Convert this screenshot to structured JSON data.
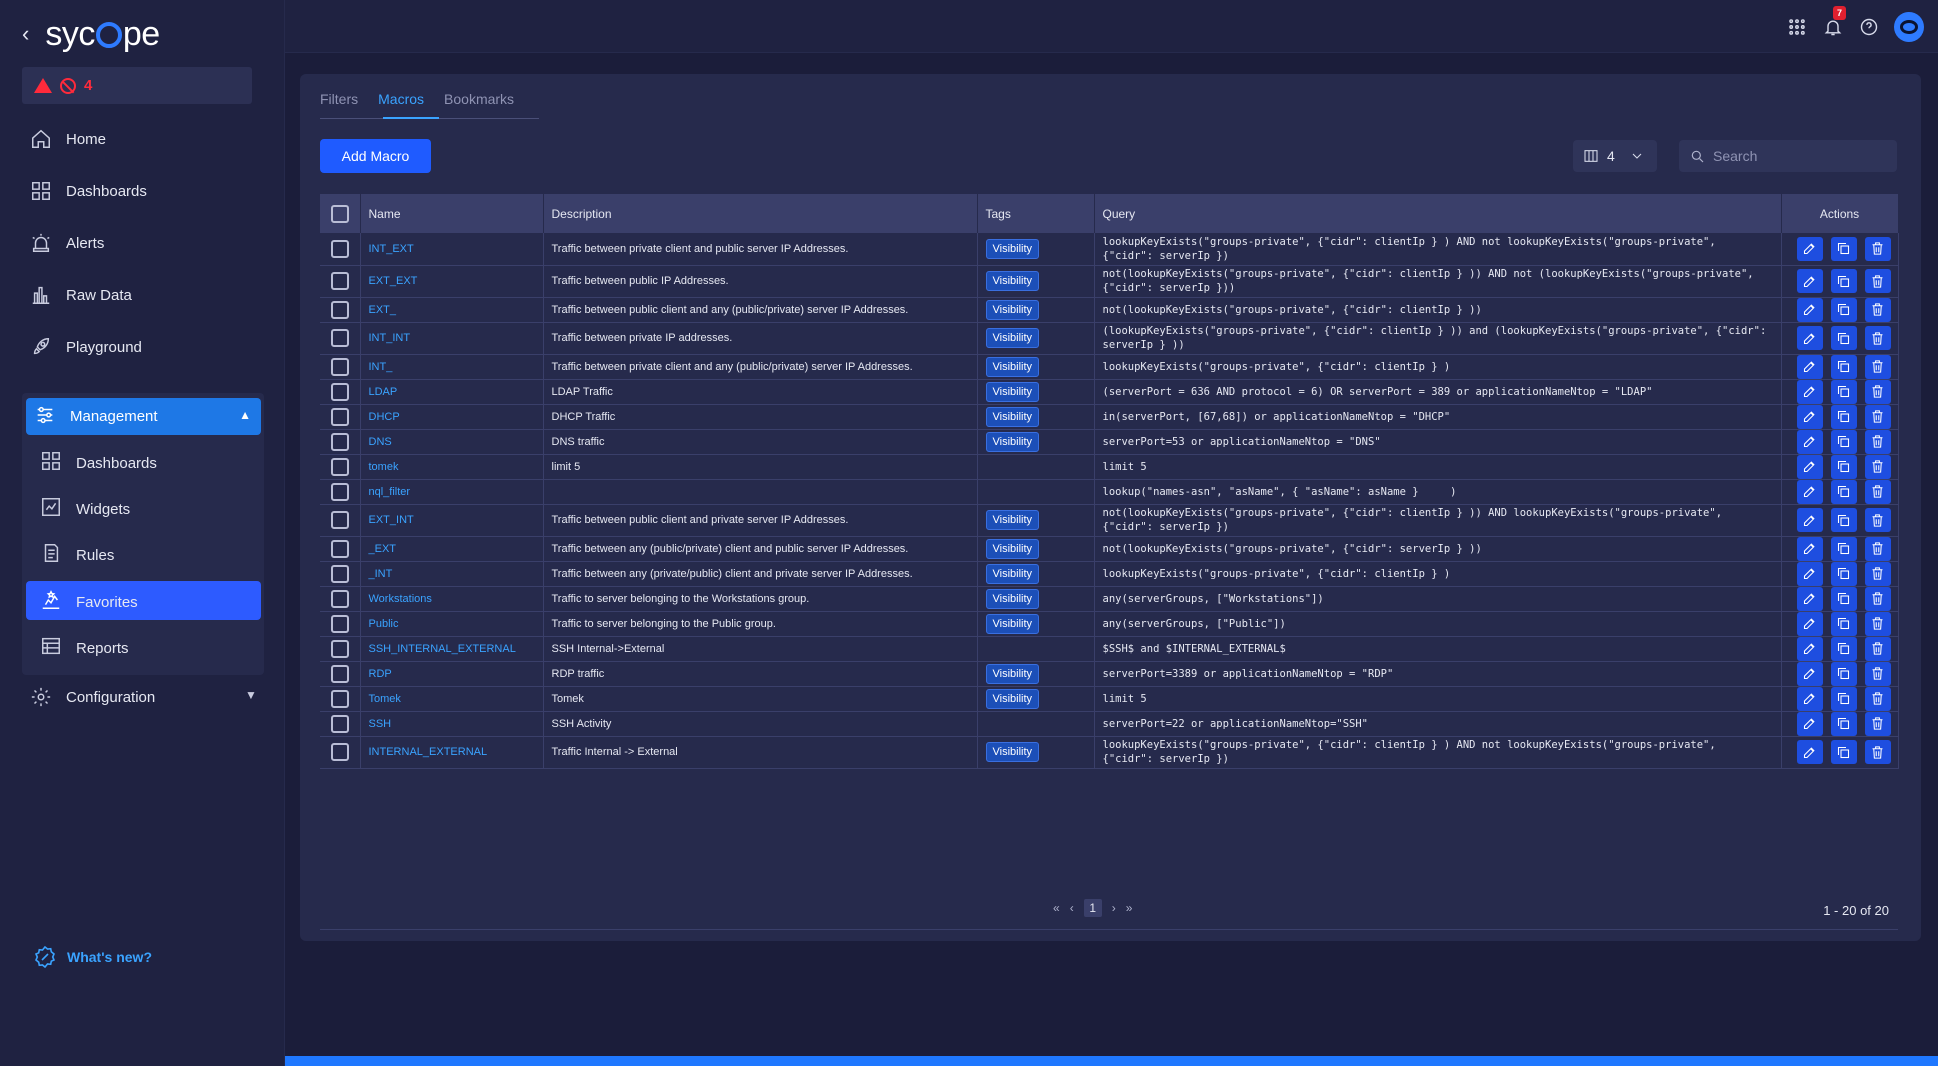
{
  "brand": {
    "name": "sycope",
    "back_label": "‹"
  },
  "alerts": {
    "count": "4"
  },
  "nav": {
    "home": "Home",
    "dashboards": "Dashboards",
    "alerts": "Alerts",
    "raw_data": "Raw Data",
    "playground": "Playground",
    "management": "Management",
    "mgmt_dashboards": "Dashboards",
    "widgets": "Widgets",
    "rules": "Rules",
    "favorites": "Favorites",
    "reports": "Reports",
    "configuration": "Configuration",
    "whats_new": "What's new?"
  },
  "topbar": {
    "notification_count": "7"
  },
  "tabs": [
    "Filters",
    "Macros",
    "Bookmarks"
  ],
  "toolbar": {
    "add_label": "Add Macro",
    "columns_count": "4",
    "search_placeholder": "Search"
  },
  "table": {
    "headers": {
      "name": "Name",
      "description": "Description",
      "tags": "Tags",
      "query": "Query",
      "actions": "Actions"
    },
    "rows": [
      {
        "name": "INT_EXT",
        "description": "Traffic between private client and public server IP Addresses.",
        "tag": "Visibility",
        "query": "lookupKeyExists(\"groups-private\", {\"cidr\": clientIp } ) AND not lookupKeyExists(\"groups-private\", {\"cidr\": serverIp })"
      },
      {
        "name": "EXT_EXT",
        "description": "Traffic between public IP Addresses.",
        "tag": "Visibility",
        "query": "not(lookupKeyExists(\"groups-private\", {\"cidr\": clientIp } )) AND not (lookupKeyExists(\"groups-private\", {\"cidr\": serverIp }))"
      },
      {
        "name": "EXT_",
        "description": "Traffic between public client and any (public/private) server IP Addresses.",
        "tag": "Visibility",
        "query": "not(lookupKeyExists(\"groups-private\", {\"cidr\": clientIp } ))"
      },
      {
        "name": "INT_INT",
        "description": "Traffic between private IP addresses.",
        "tag": "Visibility",
        "query": "(lookupKeyExists(\"groups-private\", {\"cidr\": clientIp } )) and (lookupKeyExists(\"groups-private\", {\"cidr\": serverIp } ))"
      },
      {
        "name": "INT_",
        "description": "Traffic between private client and any (public/private) server IP Addresses.",
        "tag": "Visibility",
        "query": "lookupKeyExists(\"groups-private\", {\"cidr\": clientIp } )"
      },
      {
        "name": "LDAP",
        "description": "LDAP Traffic",
        "tag": "Visibility",
        "query": "(serverPort = 636 AND protocol = 6) OR serverPort = 389 or applicationNameNtop = \"LDAP\""
      },
      {
        "name": "DHCP",
        "description": "DHCP Traffic",
        "tag": "Visibility",
        "query": "in(serverPort, [67,68]) or applicationNameNtop = \"DHCP\""
      },
      {
        "name": "DNS",
        "description": "DNS traffic",
        "tag": "Visibility",
        "query": "serverPort=53 or applicationNameNtop = \"DNS\""
      },
      {
        "name": "tomek",
        "description": "limit 5",
        "tag": "",
        "query": "limit 5"
      },
      {
        "name": "nql_filter",
        "description": "",
        "tag": "",
        "query": "lookup(\"names-asn\", \"asName\", { \"asName\": asName }     )"
      },
      {
        "name": "EXT_INT",
        "description": "Traffic between public client and private server IP Addresses.",
        "tag": "Visibility",
        "query": "not(lookupKeyExists(\"groups-private\", {\"cidr\": clientIp } )) AND lookupKeyExists(\"groups-private\", {\"cidr\": serverIp })"
      },
      {
        "name": "_EXT",
        "description": "Traffic between any (public/private) client and public server IP Addresses.",
        "tag": "Visibility",
        "query": "not(lookupKeyExists(\"groups-private\", {\"cidr\": serverIp } ))"
      },
      {
        "name": "_INT",
        "description": "Traffic between any (private/public) client and private server IP Addresses.",
        "tag": "Visibility",
        "query": "lookupKeyExists(\"groups-private\", {\"cidr\": clientIp } )"
      },
      {
        "name": "Workstations",
        "description": "Traffic to server belonging to the Workstations group.",
        "tag": "Visibility",
        "query": "any(serverGroups, [\"Workstations\"])"
      },
      {
        "name": "Public",
        "description": "Traffic to server belonging to the Public group.",
        "tag": "Visibility",
        "query": "any(serverGroups, [\"Public\"])"
      },
      {
        "name": "SSH_INTERNAL_EXTERNAL",
        "description": "SSH Internal->External",
        "tag": "",
        "query": "$SSH$ and $INTERNAL_EXTERNAL$"
      },
      {
        "name": "RDP",
        "description": "RDP traffic",
        "tag": "Visibility",
        "query": "serverPort=3389 or applicationNameNtop = \"RDP\""
      },
      {
        "name": "Tomek",
        "description": "Tomek",
        "tag": "Visibility",
        "query": "limit 5"
      },
      {
        "name": "SSH",
        "description": "SSH Activity",
        "tag": "",
        "query": "serverPort=22 or applicationNameNtop=\"SSH\""
      },
      {
        "name": "INTERNAL_EXTERNAL",
        "description": "Traffic Internal -> External",
        "tag": "Visibility",
        "query": "lookupKeyExists(\"groups-private\", {\"cidr\": clientIp } ) AND not lookupKeyExists(\"groups-private\", {\"cidr\": serverIp })"
      }
    ]
  },
  "pagination": {
    "current_page": "1",
    "range": "1 - 20 of 20"
  },
  "colors": {
    "accent": "#1f5bff",
    "link": "#3aa3ff",
    "alert": "#ff2a3b"
  }
}
